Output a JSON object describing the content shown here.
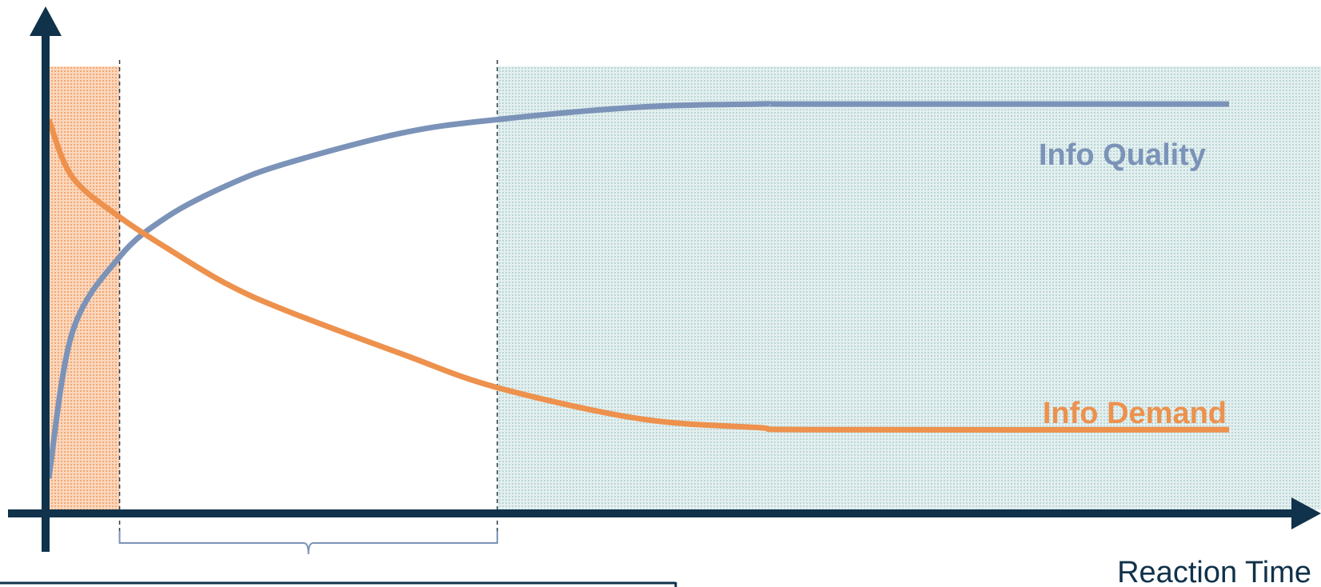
{
  "chart_data": {
    "type": "line",
    "xlabel": "Reaction Time",
    "ylabel": "",
    "xlim": [
      0,
      100
    ],
    "ylim": [
      0,
      100
    ],
    "grid": false,
    "legend": "inline labels at right end of each series",
    "series": [
      {
        "name": "Info Quality",
        "color": "#7b93b8",
        "x": [
          0,
          2,
          6,
          10,
          15,
          20,
          30,
          38,
          50,
          60,
          65,
          100
        ],
        "y": [
          7,
          40,
          57,
          66,
          73,
          78,
          85,
          88,
          90.8,
          91.5,
          91.5,
          91.5
        ]
      },
      {
        "name": "Info Demand",
        "color": "#ed914d",
        "x": [
          0,
          2,
          6,
          10,
          15,
          20,
          30,
          38,
          50,
          60,
          65,
          100
        ],
        "y": [
          88,
          75,
          66,
          59,
          51,
          45,
          35,
          27.5,
          20.5,
          18.5,
          18,
          18
        ]
      }
    ],
    "regions": [
      {
        "x_start": 0,
        "x_end": 6,
        "color": "#f6b68a"
      },
      {
        "x_start": 6,
        "x_end": 38,
        "color": "#ffffff"
      },
      {
        "x_start": 38,
        "x_end": 108,
        "color": "#cfe2e2"
      }
    ],
    "markers": {
      "dashed_lines_x": [
        6,
        38
      ],
      "brace_span": [
        6,
        38
      ]
    }
  },
  "colors": {
    "axis": "#10324a",
    "quality": "#7b93b8",
    "demand": "#ed914d",
    "divider": "#2a3a4a"
  }
}
